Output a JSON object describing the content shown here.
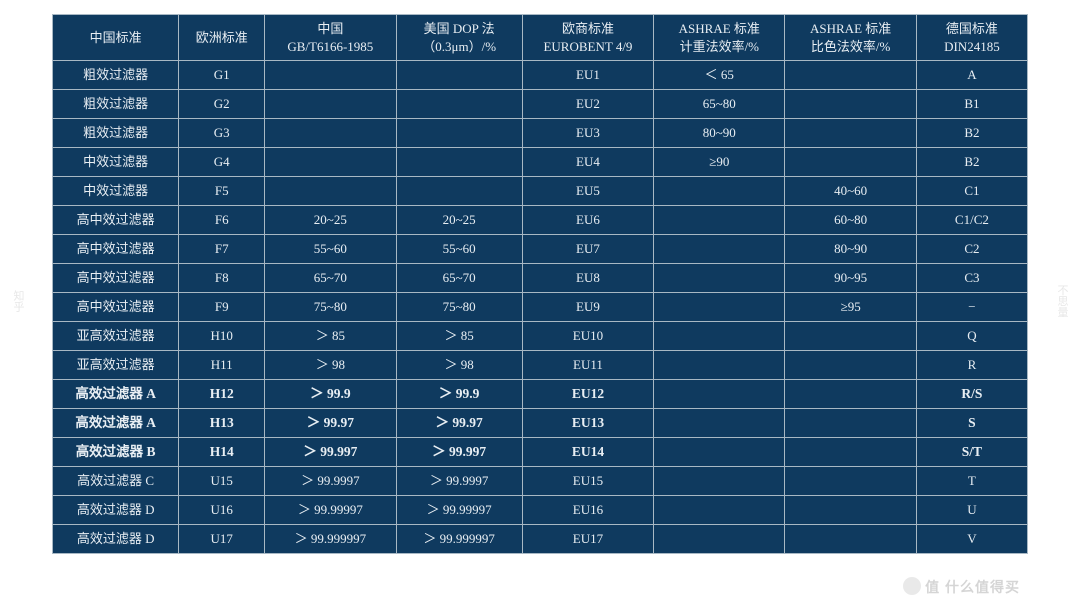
{
  "table": {
    "background_color": "#0f3a5f",
    "border_color": "#a8b8c4",
    "text_color": "#e8eef3",
    "headers": [
      "中国标准",
      "欧洲标准",
      "中国\nGB/T6166-1985",
      "美国 DOP 法\n（0.3μm）/%",
      "欧商标准\nEUROBENT 4/9",
      "ASHRAE 标准\n计重法效率/%",
      "ASHRAE 标准\n比色法效率/%",
      "德国标准\nDIN24185"
    ],
    "rows": [
      {
        "bold": false,
        "cells": [
          "粗效过滤器",
          "G1",
          "",
          "",
          "EU1",
          "＜ 65",
          "",
          "A"
        ]
      },
      {
        "bold": false,
        "cells": [
          "粗效过滤器",
          "G2",
          "",
          "",
          "EU2",
          "65~80",
          "",
          "B1"
        ]
      },
      {
        "bold": false,
        "cells": [
          "粗效过滤器",
          "G3",
          "",
          "",
          "EU3",
          "80~90",
          "",
          "B2"
        ]
      },
      {
        "bold": false,
        "cells": [
          "中效过滤器",
          "G4",
          "",
          "",
          "EU4",
          "≥90",
          "",
          "B2"
        ]
      },
      {
        "bold": false,
        "cells": [
          "中效过滤器",
          "F5",
          "",
          "",
          "EU5",
          "",
          "40~60",
          "C1"
        ]
      },
      {
        "bold": false,
        "cells": [
          "高中效过滤器",
          "F6",
          "20~25",
          "20~25",
          "EU6",
          "",
          "60~80",
          "C1/C2"
        ]
      },
      {
        "bold": false,
        "cells": [
          "高中效过滤器",
          "F7",
          "55~60",
          "55~60",
          "EU7",
          "",
          "80~90",
          "C2"
        ]
      },
      {
        "bold": false,
        "cells": [
          "高中效过滤器",
          "F8",
          "65~70",
          "65~70",
          "EU8",
          "",
          "90~95",
          "C3"
        ]
      },
      {
        "bold": false,
        "cells": [
          "高中效过滤器",
          "F9",
          "75~80",
          "75~80",
          "EU9",
          "",
          "≥95",
          "−"
        ]
      },
      {
        "bold": false,
        "cells": [
          "亚高效过滤器",
          "H10",
          "＞ 85",
          "＞ 85",
          "EU10",
          "",
          "",
          "Q"
        ]
      },
      {
        "bold": false,
        "cells": [
          "亚高效过滤器",
          "H11",
          "＞ 98",
          "＞ 98",
          "EU11",
          "",
          "",
          "R"
        ]
      },
      {
        "bold": true,
        "cells": [
          "高效过滤器 A",
          "H12",
          "＞ 99.9",
          "＞ 99.9",
          "EU12",
          "",
          "",
          "R/S"
        ]
      },
      {
        "bold": true,
        "cells": [
          "高效过滤器 A",
          "H13",
          "＞ 99.97",
          "＞ 99.97",
          "EU13",
          "",
          "",
          "S"
        ]
      },
      {
        "bold": true,
        "cells": [
          "高效过滤器 B",
          "H14",
          "＞ 99.997",
          "＞ 99.997",
          "EU14",
          "",
          "",
          "S/T"
        ]
      },
      {
        "bold": false,
        "cells": [
          "高效过滤器 C",
          "U15",
          "＞ 99.9997",
          "＞ 99.9997",
          "EU15",
          "",
          "",
          "T"
        ]
      },
      {
        "bold": false,
        "cells": [
          "高效过滤器 D",
          "U16",
          "＞ 99.99997",
          "＞ 99.99997",
          "EU16",
          "",
          "",
          "U"
        ]
      },
      {
        "bold": false,
        "cells": [
          "高效过滤器 D",
          "U17",
          "＞ 99.999997",
          "＞ 99.999997",
          "EU17",
          "",
          "",
          "V"
        ]
      }
    ]
  },
  "watermarks": {
    "left": "知乎",
    "right": "不思量",
    "bottom": "值 什么值得买"
  }
}
